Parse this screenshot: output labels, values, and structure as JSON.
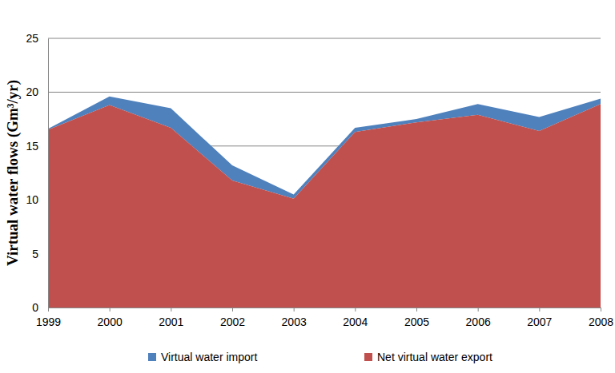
{
  "chart_data": {
    "type": "area",
    "stacked": true,
    "y_label": "Virtual water flows (Gm³/yr)",
    "categories": [
      "1999",
      "2000",
      "2001",
      "2002",
      "2003",
      "2004",
      "2005",
      "2006",
      "2007",
      "2008"
    ],
    "series": [
      {
        "name": "Virtual water import",
        "color": "#4f81bd",
        "values": [
          0.1,
          0.8,
          1.8,
          1.4,
          0.4,
          0.4,
          0.3,
          1.0,
          1.3,
          0.5
        ]
      },
      {
        "name": "Net virtual water export",
        "color": "#c0504d",
        "values": [
          16.5,
          18.8,
          16.7,
          11.8,
          10.1,
          16.3,
          17.2,
          17.9,
          16.4,
          18.9
        ]
      }
    ],
    "ylim": [
      0,
      25
    ],
    "yticks": [
      0,
      5,
      10,
      15,
      20,
      25
    ],
    "grid": true,
    "legend": "bottom"
  }
}
